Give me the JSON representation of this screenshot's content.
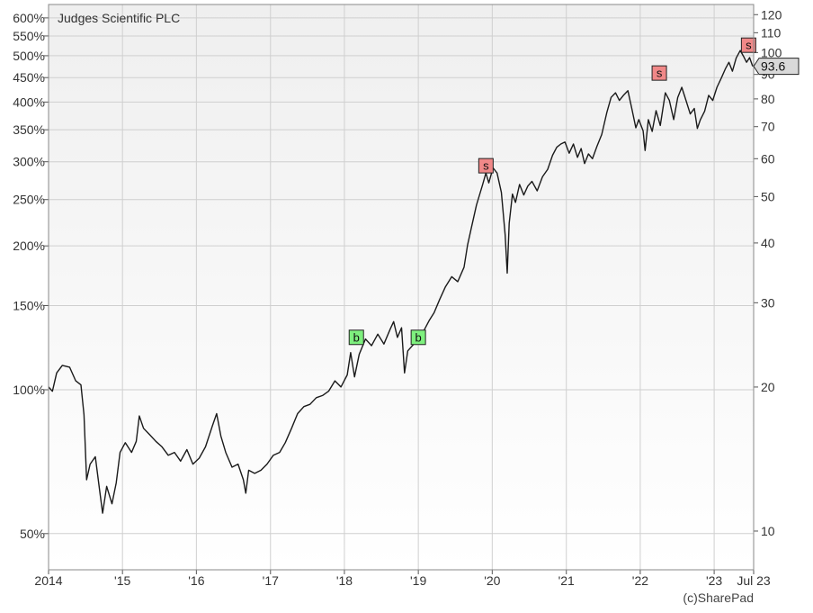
{
  "chart_data": {
    "type": "line",
    "title": "Judges Scientific PLC",
    "credit": "(c)SharePad",
    "current_price_label": "93.6",
    "current_price": 93.6,
    "scale": "log",
    "grid": true,
    "colors": {
      "line": "#1a1a1a",
      "buy_marker": "#7ef07e",
      "sell_marker": "#f08888",
      "plot_background_top": "#efefef",
      "plot_background_bottom": "#ffffff",
      "grid": "#cfcfcf"
    },
    "x_range": [
      "2014-01-01",
      "2023-07-15"
    ],
    "x_tick_labels": [
      {
        "date": "2014-01-01",
        "label": "2014"
      },
      {
        "date": "2015-01-01",
        "label": "'15"
      },
      {
        "date": "2016-01-01",
        "label": "'16"
      },
      {
        "date": "2017-01-01",
        "label": "'17"
      },
      {
        "date": "2018-01-01",
        "label": "'18"
      },
      {
        "date": "2019-01-01",
        "label": "'19"
      },
      {
        "date": "2020-01-01",
        "label": "'20"
      },
      {
        "date": "2021-01-01",
        "label": "'21"
      },
      {
        "date": "2022-01-01",
        "label": "'22"
      },
      {
        "date": "2023-01-01",
        "label": "'23"
      },
      {
        "date": "2023-07-15",
        "label": "Jul 23"
      }
    ],
    "left_axis": {
      "unit": "percent of start price",
      "ylim": [
        42,
        640
      ],
      "ticks": [
        {
          "value": 50,
          "label": "50%"
        },
        {
          "value": 100,
          "label": "100%"
        },
        {
          "value": 150,
          "label": "150%"
        },
        {
          "value": 200,
          "label": "200%"
        },
        {
          "value": 250,
          "label": "250%"
        },
        {
          "value": 300,
          "label": "300%"
        },
        {
          "value": 350,
          "label": "350%"
        },
        {
          "value": 400,
          "label": "400%"
        },
        {
          "value": 450,
          "label": "450%"
        },
        {
          "value": 500,
          "label": "500%"
        },
        {
          "value": 550,
          "label": "550%"
        },
        {
          "value": 600,
          "label": "600%"
        }
      ]
    },
    "right_axis": {
      "unit": "price",
      "ylim": [
        8.3,
        126
      ],
      "ticks": [
        {
          "value": 10,
          "label": "10"
        },
        {
          "value": 20,
          "label": "20"
        },
        {
          "value": 30,
          "label": "30"
        },
        {
          "value": 40,
          "label": "40"
        },
        {
          "value": 50,
          "label": "50"
        },
        {
          "value": 60,
          "label": "60"
        },
        {
          "value": 70,
          "label": "70"
        },
        {
          "value": 80,
          "label": "80"
        },
        {
          "value": 90,
          "label": "90"
        },
        {
          "value": 100,
          "label": "100"
        },
        {
          "value": 110,
          "label": "110"
        },
        {
          "value": 120,
          "label": "120"
        }
      ]
    },
    "series": [
      {
        "points": [
          [
            "2014-01-01",
            20.0
          ],
          [
            "2014-01-20",
            19.6
          ],
          [
            "2014-02-10",
            21.4
          ],
          [
            "2014-03-10",
            22.2
          ],
          [
            "2014-04-15",
            22.0
          ],
          [
            "2014-05-15",
            20.6
          ],
          [
            "2014-06-10",
            20.2
          ],
          [
            "2014-06-25",
            17.5
          ],
          [
            "2014-07-08",
            12.8
          ],
          [
            "2014-07-25",
            13.8
          ],
          [
            "2014-08-20",
            14.3
          ],
          [
            "2014-09-10",
            12.2
          ],
          [
            "2014-09-25",
            10.9
          ],
          [
            "2014-10-15",
            12.4
          ],
          [
            "2014-11-10",
            11.4
          ],
          [
            "2014-12-01",
            12.6
          ],
          [
            "2014-12-20",
            14.6
          ],
          [
            "2015-01-15",
            15.3
          ],
          [
            "2015-02-15",
            14.6
          ],
          [
            "2015-03-10",
            15.4
          ],
          [
            "2015-03-25",
            17.4
          ],
          [
            "2015-04-15",
            16.4
          ],
          [
            "2015-05-15",
            15.9
          ],
          [
            "2015-06-15",
            15.4
          ],
          [
            "2015-07-15",
            15.0
          ],
          [
            "2015-08-15",
            14.4
          ],
          [
            "2015-09-15",
            14.6
          ],
          [
            "2015-10-15",
            14.0
          ],
          [
            "2015-11-15",
            14.8
          ],
          [
            "2015-12-15",
            13.8
          ],
          [
            "2016-01-15",
            14.2
          ],
          [
            "2016-02-15",
            15.0
          ],
          [
            "2016-03-20",
            16.6
          ],
          [
            "2016-04-10",
            17.6
          ],
          [
            "2016-05-01",
            15.8
          ],
          [
            "2016-05-25",
            14.6
          ],
          [
            "2016-06-25",
            13.6
          ],
          [
            "2016-07-25",
            13.8
          ],
          [
            "2016-08-20",
            12.8
          ],
          [
            "2016-09-01",
            12.0
          ],
          [
            "2016-09-15",
            13.4
          ],
          [
            "2016-10-15",
            13.2
          ],
          [
            "2016-11-15",
            13.4
          ],
          [
            "2016-12-15",
            13.8
          ],
          [
            "2017-01-15",
            14.4
          ],
          [
            "2017-02-15",
            14.6
          ],
          [
            "2017-03-15",
            15.3
          ],
          [
            "2017-04-15",
            16.4
          ],
          [
            "2017-05-15",
            17.6
          ],
          [
            "2017-06-15",
            18.2
          ],
          [
            "2017-07-15",
            18.4
          ],
          [
            "2017-08-15",
            19.0
          ],
          [
            "2017-09-15",
            19.2
          ],
          [
            "2017-10-15",
            19.6
          ],
          [
            "2017-11-15",
            20.6
          ],
          [
            "2017-12-15",
            20.0
          ],
          [
            "2018-01-15",
            21.2
          ],
          [
            "2018-02-01",
            23.6
          ],
          [
            "2018-02-20",
            21.0
          ],
          [
            "2018-03-15",
            23.4
          ],
          [
            "2018-04-15",
            25.2
          ],
          [
            "2018-05-15",
            24.4
          ],
          [
            "2018-06-15",
            25.8
          ],
          [
            "2018-07-15",
            24.6
          ],
          [
            "2018-08-15",
            26.4
          ],
          [
            "2018-09-01",
            27.4
          ],
          [
            "2018-09-20",
            25.4
          ],
          [
            "2018-10-10",
            26.6
          ],
          [
            "2018-10-25",
            21.4
          ],
          [
            "2018-11-10",
            23.8
          ],
          [
            "2018-12-10",
            24.6
          ],
          [
            "2019-01-05",
            25.0
          ],
          [
            "2019-02-01",
            26.4
          ],
          [
            "2019-02-25",
            27.6
          ],
          [
            "2019-03-20",
            28.6
          ],
          [
            "2019-04-15",
            30.4
          ],
          [
            "2019-05-15",
            32.4
          ],
          [
            "2019-06-15",
            34.0
          ],
          [
            "2019-07-15",
            33.2
          ],
          [
            "2019-08-15",
            35.6
          ],
          [
            "2019-09-01",
            39.6
          ],
          [
            "2019-09-20",
            43.0
          ],
          [
            "2019-10-15",
            48.0
          ],
          [
            "2019-11-15",
            53.0
          ],
          [
            "2019-12-01",
            56.0
          ],
          [
            "2019-12-15",
            53.4
          ],
          [
            "2020-01-05",
            57.4
          ],
          [
            "2020-01-25",
            56.0
          ],
          [
            "2020-02-15",
            51.0
          ],
          [
            "2020-03-05",
            41.6
          ],
          [
            "2020-03-15",
            34.6
          ],
          [
            "2020-03-25",
            44.0
          ],
          [
            "2020-04-10",
            50.6
          ],
          [
            "2020-04-25",
            48.6
          ],
          [
            "2020-05-15",
            53.0
          ],
          [
            "2020-06-05",
            50.4
          ],
          [
            "2020-06-25",
            52.6
          ],
          [
            "2020-07-15",
            53.8
          ],
          [
            "2020-08-10",
            51.4
          ],
          [
            "2020-09-05",
            55.0
          ],
          [
            "2020-10-01",
            57.0
          ],
          [
            "2020-10-25",
            61.0
          ],
          [
            "2020-11-15",
            63.4
          ],
          [
            "2020-12-05",
            64.4
          ],
          [
            "2020-12-25",
            65.0
          ],
          [
            "2021-01-15",
            61.6
          ],
          [
            "2021-02-05",
            64.4
          ],
          [
            "2021-02-25",
            60.4
          ],
          [
            "2021-03-15",
            63.0
          ],
          [
            "2021-04-01",
            58.6
          ],
          [
            "2021-04-20",
            61.4
          ],
          [
            "2021-05-10",
            60.0
          ],
          [
            "2021-06-01",
            63.6
          ],
          [
            "2021-06-25",
            67.4
          ],
          [
            "2021-07-20",
            75.0
          ],
          [
            "2021-08-10",
            80.6
          ],
          [
            "2021-09-01",
            82.4
          ],
          [
            "2021-09-20",
            79.4
          ],
          [
            "2021-10-10",
            81.4
          ],
          [
            "2021-11-01",
            83.2
          ],
          [
            "2021-11-20",
            76.4
          ],
          [
            "2021-12-10",
            69.6
          ],
          [
            "2021-12-25",
            72.4
          ],
          [
            "2022-01-15",
            68.6
          ],
          [
            "2022-01-25",
            62.4
          ],
          [
            "2022-02-10",
            72.4
          ],
          [
            "2022-03-01",
            68.4
          ],
          [
            "2022-03-20",
            75.6
          ],
          [
            "2022-04-10",
            70.4
          ],
          [
            "2022-05-05",
            82.4
          ],
          [
            "2022-05-25",
            79.4
          ],
          [
            "2022-06-15",
            72.4
          ],
          [
            "2022-07-05",
            80.6
          ],
          [
            "2022-07-25",
            84.6
          ],
          [
            "2022-08-15",
            79.4
          ],
          [
            "2022-09-05",
            74.4
          ],
          [
            "2022-09-25",
            76.4
          ],
          [
            "2022-10-10",
            69.4
          ],
          [
            "2022-10-25",
            72.4
          ],
          [
            "2022-11-15",
            75.4
          ],
          [
            "2022-12-05",
            81.4
          ],
          [
            "2022-12-25",
            79.4
          ],
          [
            "2023-01-15",
            84.6
          ],
          [
            "2023-02-05",
            88.4
          ],
          [
            "2023-02-25",
            92.4
          ],
          [
            "2023-03-15",
            95.4
          ],
          [
            "2023-04-01",
            91.4
          ],
          [
            "2023-04-20",
            97.4
          ],
          [
            "2023-05-10",
            101.0
          ],
          [
            "2023-05-25",
            98.4
          ],
          [
            "2023-06-10",
            95.4
          ],
          [
            "2023-06-25",
            97.6
          ],
          [
            "2023-07-10",
            93.6
          ]
        ]
      }
    ],
    "trade_markers": [
      {
        "date": "2018-03-01",
        "price": 25.4,
        "label": "b"
      },
      {
        "date": "2019-01-01",
        "price": 25.4,
        "label": "b"
      },
      {
        "date": "2019-12-01",
        "price": 58.0,
        "label": "s"
      },
      {
        "date": "2022-04-05",
        "price": 90.6,
        "label": "s"
      },
      {
        "date": "2023-06-20",
        "price": 103.6,
        "label": "s"
      }
    ]
  }
}
